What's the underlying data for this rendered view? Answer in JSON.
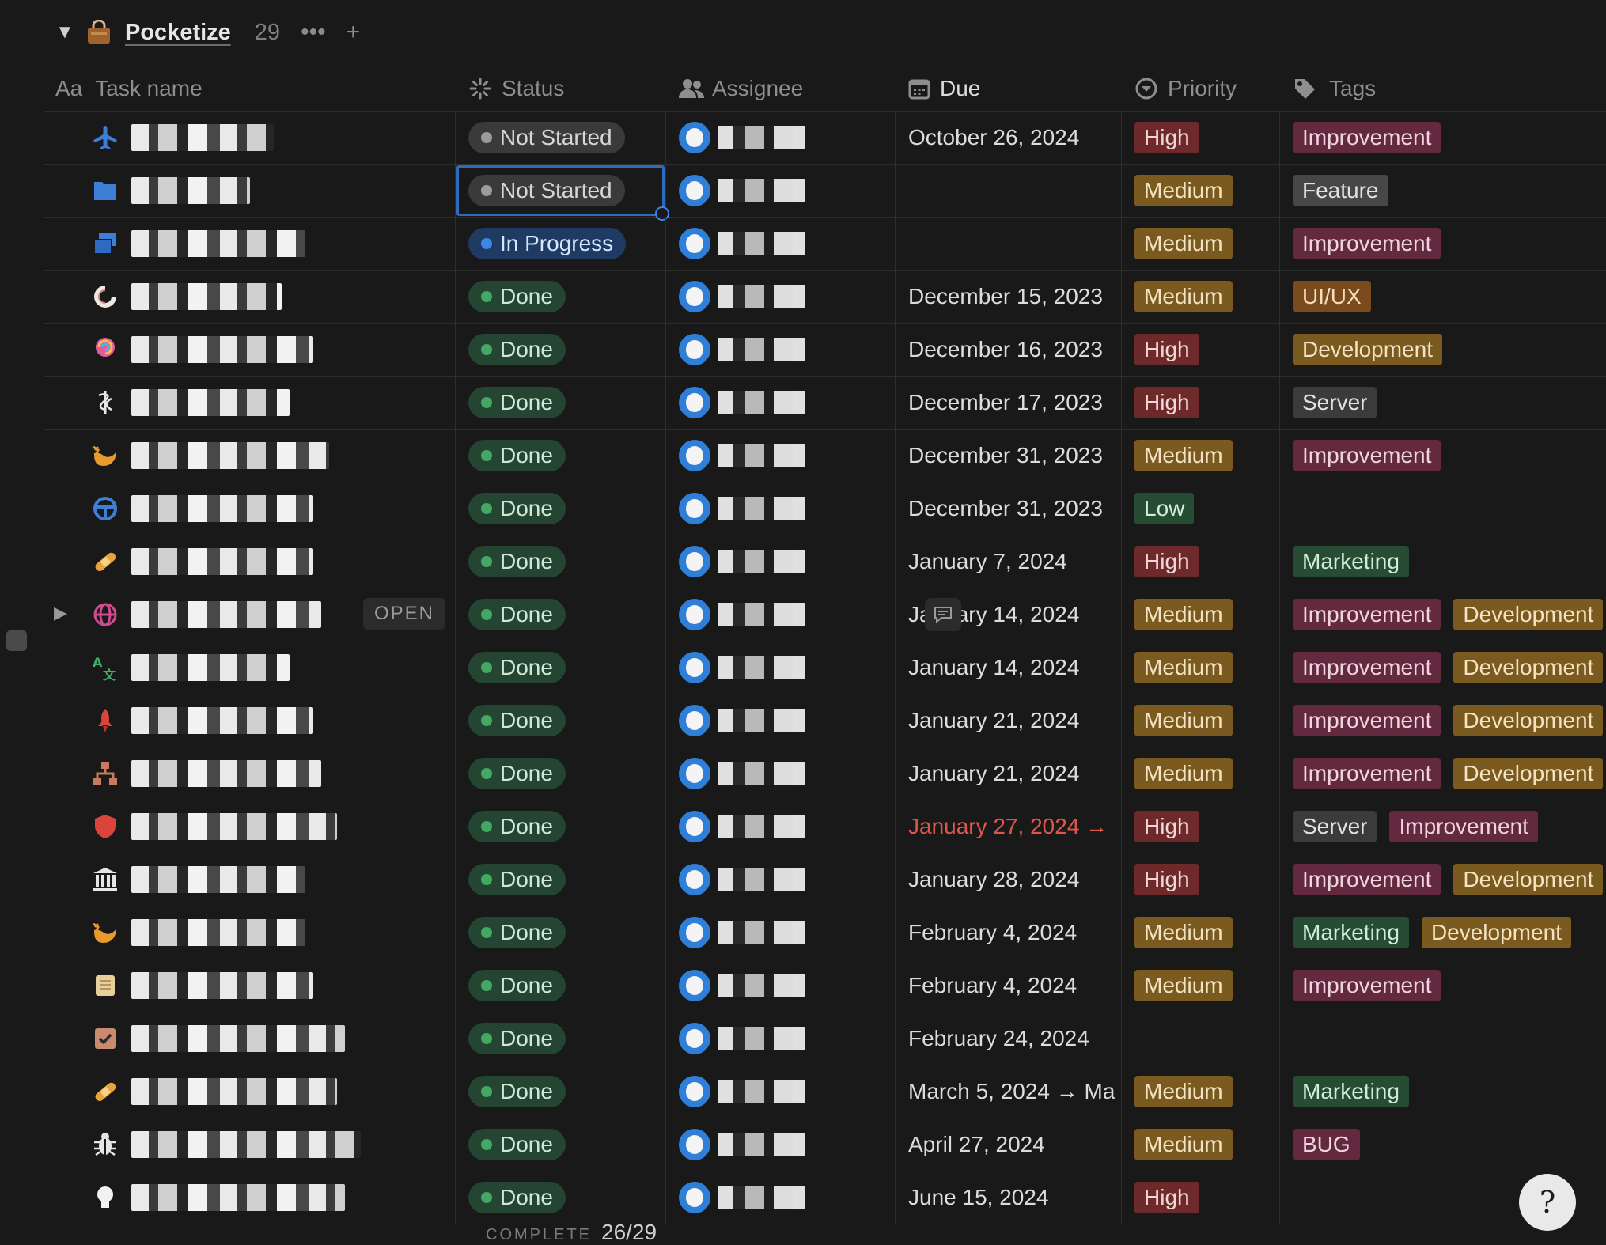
{
  "group": {
    "title": "Pocketize",
    "count": "29",
    "more_label": "•••",
    "add_label": "+"
  },
  "columns": {
    "name": "Task name",
    "name_prefix": "Aa",
    "status": "Status",
    "assignee": "Assignee",
    "due": "Due",
    "priority": "Priority",
    "tags": "Tags"
  },
  "rows": [
    {
      "icon": "airplane-icon",
      "status": "Not Started",
      "due": "October 26, 2024",
      "priority": "High",
      "tags": [
        "Improvement"
      ]
    },
    {
      "icon": "folder-icon",
      "status": "Not Started",
      "due": "",
      "priority": "Medium",
      "tags": [
        "Feature"
      ]
    },
    {
      "icon": "windows-icon",
      "status": "In Progress",
      "due": "",
      "priority": "Medium",
      "tags": [
        "Improvement"
      ]
    },
    {
      "icon": "shell-icon",
      "status": "Done",
      "due": "December 15, 2023",
      "priority": "Medium",
      "tags": [
        "UI/UX"
      ]
    },
    {
      "icon": "lollipop-icon",
      "status": "Done",
      "due": "December 16, 2023",
      "priority": "High",
      "tags": [
        "Development"
      ]
    },
    {
      "icon": "caduceus-icon",
      "status": "Done",
      "due": "December 17, 2023",
      "priority": "High",
      "tags": [
        "Server"
      ]
    },
    {
      "icon": "whale-icon",
      "status": "Done",
      "due": "December 31, 2023",
      "priority": "Medium",
      "tags": [
        "Improvement"
      ]
    },
    {
      "icon": "steering-wheel-icon",
      "status": "Done",
      "due": "December 31, 2023",
      "priority": "Low",
      "tags": []
    },
    {
      "icon": "bandage-icon",
      "status": "Done",
      "due": "January 7, 2024",
      "priority": "High",
      "tags": [
        "Marketing"
      ]
    },
    {
      "icon": "globe-icon",
      "status": "Done",
      "due": "January 14, 2024",
      "priority": "Medium",
      "tags": [
        "Improvement",
        "Development"
      ],
      "open_label": "OPEN"
    },
    {
      "icon": "translate-icon",
      "status": "Done",
      "due": "January 14, 2024",
      "priority": "Medium",
      "tags": [
        "Improvement",
        "Development"
      ]
    },
    {
      "icon": "rocket-icon",
      "status": "Done",
      "due": "January 21, 2024",
      "priority": "Medium",
      "tags": [
        "Improvement",
        "Development"
      ]
    },
    {
      "icon": "hierarchy-icon",
      "status": "Done",
      "due": "January 21, 2024",
      "priority": "Medium",
      "tags": [
        "Improvement",
        "Development"
      ]
    },
    {
      "icon": "shield-icon",
      "status": "Done",
      "due": "January 27, 2024 →",
      "priority": "High",
      "tags": [
        "Server",
        "Improvement"
      ],
      "overdue": true
    },
    {
      "icon": "bank-icon",
      "status": "Done",
      "due": "January 28, 2024",
      "priority": "High",
      "tags": [
        "Improvement",
        "Development"
      ]
    },
    {
      "icon": "whale-icon",
      "status": "Done",
      "due": "February 4, 2024",
      "priority": "Medium",
      "tags": [
        "Marketing",
        "Development"
      ]
    },
    {
      "icon": "scroll-icon",
      "status": "Done",
      "due": "February 4, 2024",
      "priority": "Medium",
      "tags": [
        "Improvement"
      ]
    },
    {
      "icon": "checkbox-icon",
      "status": "Done",
      "due": "February 24, 2024",
      "priority": "",
      "tags": []
    },
    {
      "icon": "bandage-icon",
      "status": "Done",
      "due": "March 5, 2024 → Ma",
      "priority": "Medium",
      "tags": [
        "Marketing"
      ]
    },
    {
      "icon": "bug-icon",
      "status": "Done",
      "due": "April 27, 2024",
      "priority": "Medium",
      "tags": [
        "BUG"
      ]
    },
    {
      "icon": "lightbulb-icon",
      "status": "Done",
      "due": "June 15, 2024",
      "priority": "High",
      "tags": []
    }
  ],
  "footer": {
    "label": "COMPLETE",
    "value": "26/29"
  },
  "help_label": "?"
}
